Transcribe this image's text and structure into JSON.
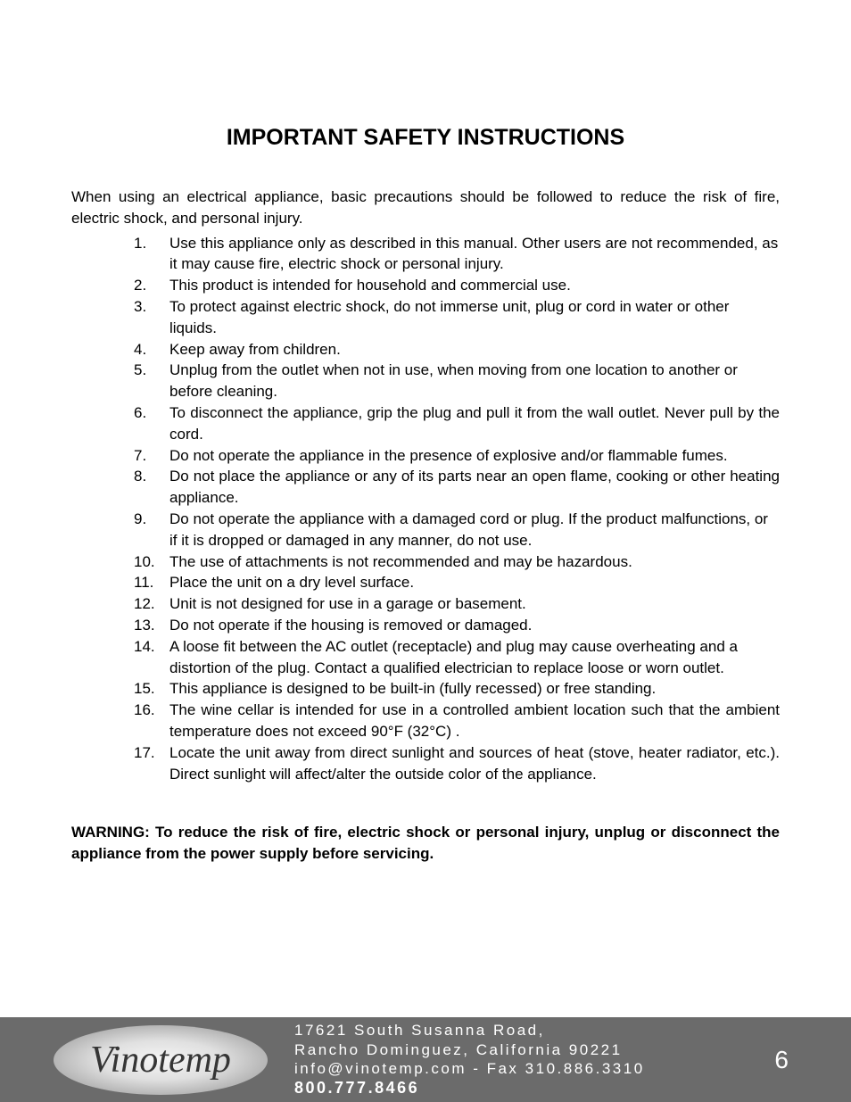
{
  "title": "IMPORTANT SAFETY INSTRUCTIONS",
  "intro": "When using an electrical appliance, basic precautions should be followed to reduce the risk of fire, electric shock, and personal injury.",
  "items": [
    {
      "num": "1.",
      "text": "Use this appliance only as described in this manual. Other users are not recommended, as it may cause fire, electric shock or personal injury."
    },
    {
      "num": "2.",
      "text": "This product is intended for household and commercial use."
    },
    {
      "num": "3.",
      "text": "To protect against electric shock, do not immerse unit, plug or cord in water or other liquids."
    },
    {
      "num": "4.",
      "text": "Keep away from children."
    },
    {
      "num": "5.",
      "text": "Unplug from the outlet when not in use, when moving from one location to another or before cleaning."
    },
    {
      "num": "6.",
      "text": "To disconnect the appliance, grip the plug and pull it from the wall outlet. Never pull by the cord."
    },
    {
      "num": "7.",
      "text": "Do not operate the appliance in the presence of explosive and/or flammable fumes."
    },
    {
      "num": "8.",
      "text": "Do not place the appliance or any of its parts near an open flame, cooking or other heating appliance."
    },
    {
      "num": "9.",
      "text": "Do not operate the appliance with a damaged cord or plug. If the product malfunctions, or if it is dropped or damaged in any manner, do not use."
    },
    {
      "num": "10.",
      "text": "The use of attachments is not recommended and may be hazardous."
    },
    {
      "num": "11.",
      "text": "Place the unit on a dry level surface."
    },
    {
      "num": "12.",
      "text": "Unit is not designed for use in a garage or basement."
    },
    {
      "num": "13.",
      "text": "Do not operate if the housing is removed or damaged."
    },
    {
      "num": "14.",
      "text": "A loose fit between the AC outlet (receptacle) and plug may cause overheating and a distortion of the plug. Contact a qualified electrician to replace loose or worn outlet."
    },
    {
      "num": "15.",
      "text": "This appliance is designed to be built-in (fully recessed) or free standing."
    },
    {
      "num": "16.",
      "text": "The wine cellar is intended for use in a controlled ambient location such that the ambient temperature does not exceed 90°F (32°C) ."
    },
    {
      "num": "17.",
      "text": "Locate the unit away from direct sunlight and sources of heat (stove, heater radiator, etc.). Direct sunlight will affect/alter the outside color of the appliance."
    }
  ],
  "warning": "WARNING: To reduce the risk of fire, electric shock or personal injury, unplug or disconnect the appliance from the power supply before servicing.",
  "footer": {
    "logo": "Vinotemp",
    "address1": "17621 South Susanna Road,",
    "address2": "Rancho Dominguez, California 90221",
    "contact": "info@vinotemp.com - Fax 310.886.3310",
    "phone": "800.777.8466",
    "page": "6"
  },
  "colors": {
    "text": "#000000",
    "background": "#ffffff",
    "footer_bg": "#6b6b6b",
    "footer_text": "#ffffff"
  },
  "typography": {
    "body_fontsize": 17,
    "title_fontsize": 25,
    "page_number_fontsize": 28,
    "logo_fontsize": 42
  }
}
